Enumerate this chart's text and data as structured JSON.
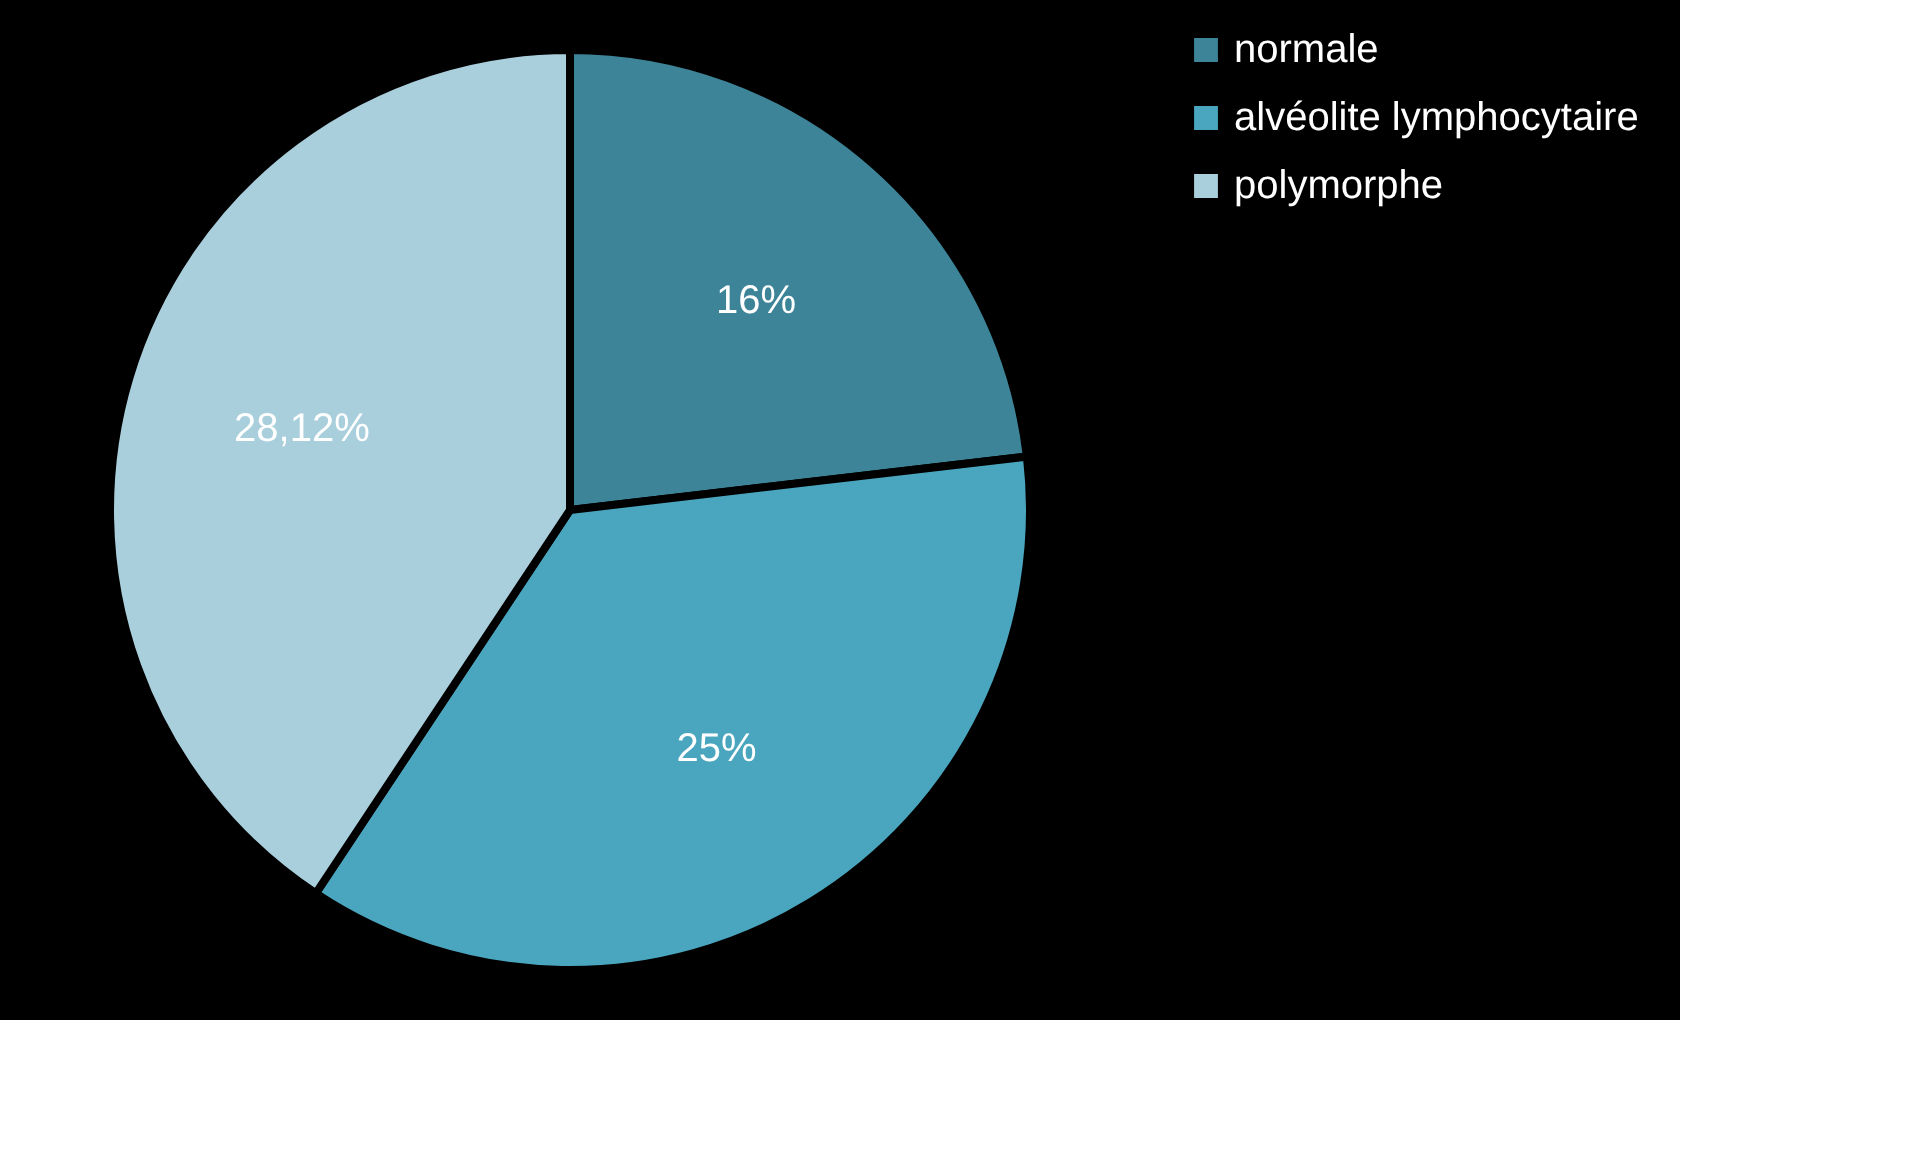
{
  "chart_data": {
    "type": "pie",
    "categories": [
      "normale",
      "alvéolite  lymphocytaire",
      "polymorphe"
    ],
    "values": [
      16,
      25,
      28.12
    ],
    "value_labels": [
      "16%",
      "25%",
      "28,12%"
    ],
    "colors": [
      "#3d8499",
      "#4aa6bf",
      "#a9cfdc"
    ],
    "legend": "right"
  }
}
